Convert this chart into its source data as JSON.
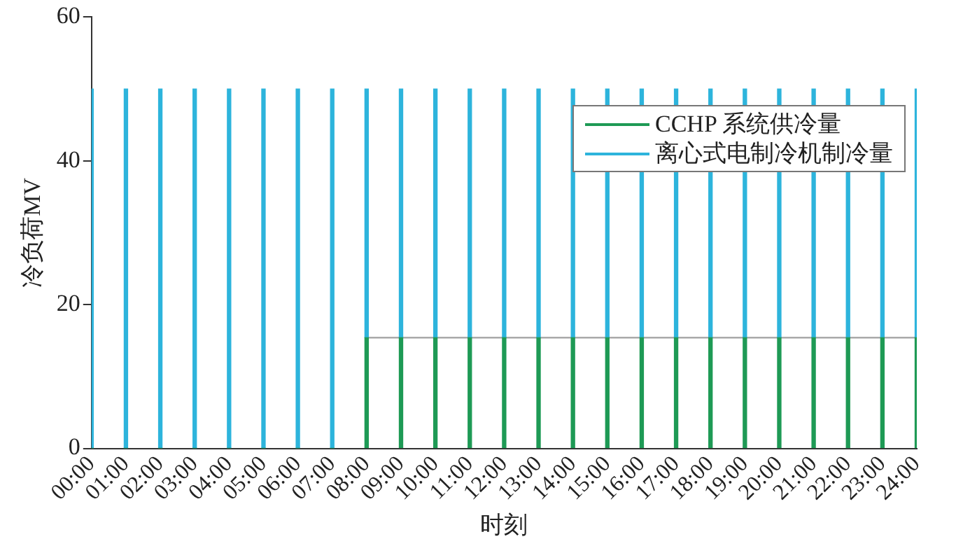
{
  "chart_data": {
    "type": "bar",
    "stacked": true,
    "xlabel": "时刻",
    "ylabel": "冷负荷MV",
    "categories": [
      "00:00",
      "01:00",
      "02:00",
      "03:00",
      "04:00",
      "05:00",
      "06:00",
      "07:00",
      "08:00",
      "09:00",
      "10:00",
      "11:00",
      "12:00",
      "13:00",
      "14:00",
      "15:00",
      "16:00",
      "17:00",
      "18:00",
      "19:00",
      "20:00",
      "21:00",
      "22:00",
      "23:00",
      "24:00"
    ],
    "series": [
      {
        "name": "CCHP 系统供冷量",
        "color": "#1e9a55",
        "values": [
          0,
          0,
          0,
          0,
          0,
          0,
          0,
          0,
          15.4,
          15.4,
          15.4,
          15.4,
          15.4,
          15.4,
          15.4,
          15.4,
          15.4,
          15.4,
          15.4,
          15.4,
          15.4,
          15.4,
          15.4,
          15.4,
          15.4
        ]
      },
      {
        "name": "离心式电制冷机制冷量",
        "color": "#2db4dc",
        "values": [
          50,
          50,
          50,
          50,
          50,
          50,
          50,
          50,
          34.6,
          34.6,
          34.6,
          34.6,
          34.6,
          34.6,
          34.6,
          34.6,
          34.6,
          34.6,
          34.6,
          34.6,
          34.6,
          34.6,
          34.6,
          34.6,
          34.6
        ]
      },
      {
        "type": "line",
        "color": "#a0a0a0",
        "values": [
          null,
          null,
          null,
          null,
          null,
          null,
          null,
          null,
          15.4,
          15.4,
          15.4,
          15.4,
          15.4,
          15.4,
          15.4,
          15.4,
          15.4,
          15.4,
          15.4,
          15.4,
          15.4,
          15.4,
          15.4,
          15.4,
          15.4
        ]
      }
    ],
    "ylim": [
      0,
      60
    ],
    "yticks": [
      0,
      20,
      40,
      60
    ],
    "grid": false,
    "legend": "top right",
    "marker": "none"
  }
}
